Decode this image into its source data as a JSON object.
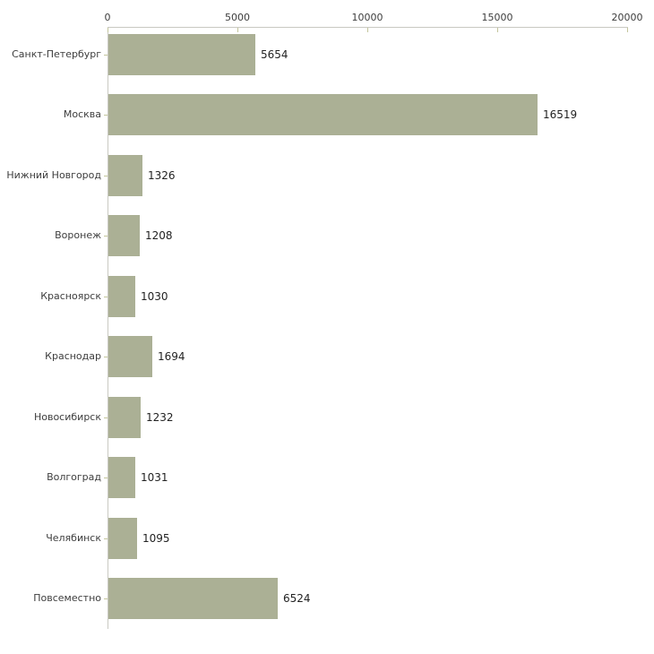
{
  "chart_data": {
    "type": "bar",
    "orientation": "horizontal",
    "title": "",
    "xlabel": "",
    "ylabel": "",
    "categories": [
      "Санкт-Петербург",
      "Москва",
      "Нижний Новгород",
      "Воронеж",
      "Красноярск",
      "Краснодар",
      "Новосибирск",
      "Волгоград",
      "Челябинск",
      "Повсеместно"
    ],
    "values": [
      5654,
      16519,
      1326,
      1208,
      1030,
      1694,
      1232,
      1031,
      1095,
      6524
    ],
    "value_labels": [
      "5654",
      "16519",
      "1326",
      "1208",
      "1030",
      "1694",
      "1232",
      "1031",
      "1095",
      "6524"
    ],
    "x_ticks": [
      0,
      5000,
      10000,
      15000,
      20000
    ],
    "x_tick_labels": [
      "0",
      "5000",
      "10000",
      "15000",
      "20000"
    ],
    "xlim": [
      0,
      20000
    ],
    "grid": false,
    "legend": false,
    "axis_position": "top",
    "colors": {
      "bar": "#abb095",
      "axis_line": "#c9c9c2",
      "tick_mark": "#c3c59c",
      "category_text": "#3d3d3d",
      "value_text": "#222222",
      "background": "#ffffff"
    }
  }
}
